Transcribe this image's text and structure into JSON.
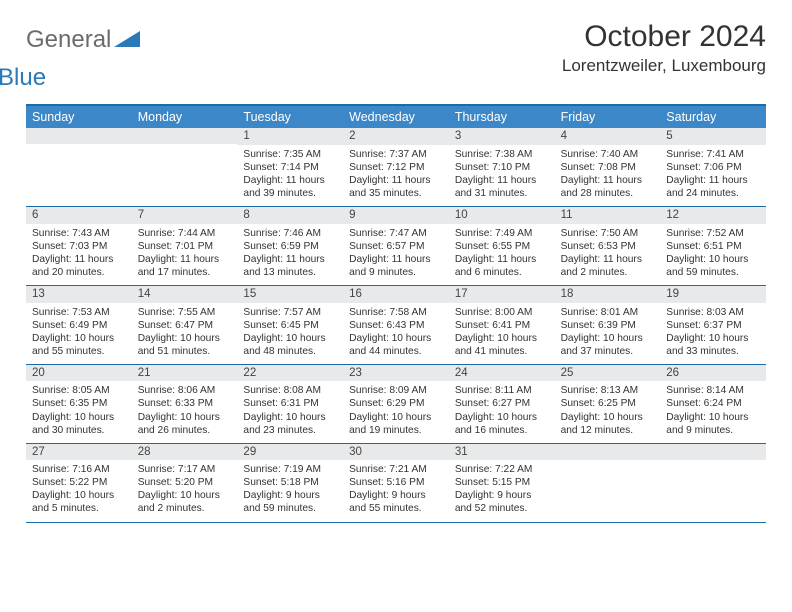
{
  "brand": {
    "general": "General",
    "blue": "Blue"
  },
  "title": "October 2024",
  "location": "Lorentzweiler, Luxembourg",
  "colors": {
    "header_bg": "#3b87c8",
    "header_border": "#1c6aa6",
    "daybar_bg": "#e7e9eb",
    "logo_grey": "#6b6b6b",
    "logo_blue": "#2a7ab8",
    "text": "#333333",
    "page_bg": "#ffffff"
  },
  "layout": {
    "cols": 7,
    "rows": 5
  },
  "weekdays": [
    "Sunday",
    "Monday",
    "Tuesday",
    "Wednesday",
    "Thursday",
    "Friday",
    "Saturday"
  ],
  "weeks": [
    [
      null,
      null,
      {
        "n": "1",
        "sunrise": "7:35 AM",
        "sunset": "7:14 PM",
        "dl": "11 hours and 39 minutes."
      },
      {
        "n": "2",
        "sunrise": "7:37 AM",
        "sunset": "7:12 PM",
        "dl": "11 hours and 35 minutes."
      },
      {
        "n": "3",
        "sunrise": "7:38 AM",
        "sunset": "7:10 PM",
        "dl": "11 hours and 31 minutes."
      },
      {
        "n": "4",
        "sunrise": "7:40 AM",
        "sunset": "7:08 PM",
        "dl": "11 hours and 28 minutes."
      },
      {
        "n": "5",
        "sunrise": "7:41 AM",
        "sunset": "7:06 PM",
        "dl": "11 hours and 24 minutes."
      }
    ],
    [
      {
        "n": "6",
        "sunrise": "7:43 AM",
        "sunset": "7:03 PM",
        "dl": "11 hours and 20 minutes."
      },
      {
        "n": "7",
        "sunrise": "7:44 AM",
        "sunset": "7:01 PM",
        "dl": "11 hours and 17 minutes."
      },
      {
        "n": "8",
        "sunrise": "7:46 AM",
        "sunset": "6:59 PM",
        "dl": "11 hours and 13 minutes."
      },
      {
        "n": "9",
        "sunrise": "7:47 AM",
        "sunset": "6:57 PM",
        "dl": "11 hours and 9 minutes."
      },
      {
        "n": "10",
        "sunrise": "7:49 AM",
        "sunset": "6:55 PM",
        "dl": "11 hours and 6 minutes."
      },
      {
        "n": "11",
        "sunrise": "7:50 AM",
        "sunset": "6:53 PM",
        "dl": "11 hours and 2 minutes."
      },
      {
        "n": "12",
        "sunrise": "7:52 AM",
        "sunset": "6:51 PM",
        "dl": "10 hours and 59 minutes."
      }
    ],
    [
      {
        "n": "13",
        "sunrise": "7:53 AM",
        "sunset": "6:49 PM",
        "dl": "10 hours and 55 minutes."
      },
      {
        "n": "14",
        "sunrise": "7:55 AM",
        "sunset": "6:47 PM",
        "dl": "10 hours and 51 minutes."
      },
      {
        "n": "15",
        "sunrise": "7:57 AM",
        "sunset": "6:45 PM",
        "dl": "10 hours and 48 minutes."
      },
      {
        "n": "16",
        "sunrise": "7:58 AM",
        "sunset": "6:43 PM",
        "dl": "10 hours and 44 minutes."
      },
      {
        "n": "17",
        "sunrise": "8:00 AM",
        "sunset": "6:41 PM",
        "dl": "10 hours and 41 minutes."
      },
      {
        "n": "18",
        "sunrise": "8:01 AM",
        "sunset": "6:39 PM",
        "dl": "10 hours and 37 minutes."
      },
      {
        "n": "19",
        "sunrise": "8:03 AM",
        "sunset": "6:37 PM",
        "dl": "10 hours and 33 minutes."
      }
    ],
    [
      {
        "n": "20",
        "sunrise": "8:05 AM",
        "sunset": "6:35 PM",
        "dl": "10 hours and 30 minutes."
      },
      {
        "n": "21",
        "sunrise": "8:06 AM",
        "sunset": "6:33 PM",
        "dl": "10 hours and 26 minutes."
      },
      {
        "n": "22",
        "sunrise": "8:08 AM",
        "sunset": "6:31 PM",
        "dl": "10 hours and 23 minutes."
      },
      {
        "n": "23",
        "sunrise": "8:09 AM",
        "sunset": "6:29 PM",
        "dl": "10 hours and 19 minutes."
      },
      {
        "n": "24",
        "sunrise": "8:11 AM",
        "sunset": "6:27 PM",
        "dl": "10 hours and 16 minutes."
      },
      {
        "n": "25",
        "sunrise": "8:13 AM",
        "sunset": "6:25 PM",
        "dl": "10 hours and 12 minutes."
      },
      {
        "n": "26",
        "sunrise": "8:14 AM",
        "sunset": "6:24 PM",
        "dl": "10 hours and 9 minutes."
      }
    ],
    [
      {
        "n": "27",
        "sunrise": "7:16 AM",
        "sunset": "5:22 PM",
        "dl": "10 hours and 5 minutes."
      },
      {
        "n": "28",
        "sunrise": "7:17 AM",
        "sunset": "5:20 PM",
        "dl": "10 hours and 2 minutes."
      },
      {
        "n": "29",
        "sunrise": "7:19 AM",
        "sunset": "5:18 PM",
        "dl": "9 hours and 59 minutes."
      },
      {
        "n": "30",
        "sunrise": "7:21 AM",
        "sunset": "5:16 PM",
        "dl": "9 hours and 55 minutes."
      },
      {
        "n": "31",
        "sunrise": "7:22 AM",
        "sunset": "5:15 PM",
        "dl": "9 hours and 52 minutes."
      },
      null,
      null
    ]
  ],
  "labels": {
    "sunrise": "Sunrise: ",
    "sunset": "Sunset: ",
    "daylight": "Daylight: "
  }
}
